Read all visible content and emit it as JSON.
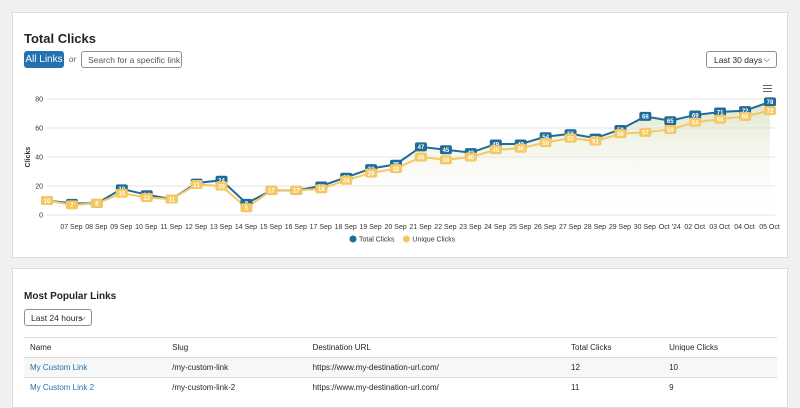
{
  "total_clicks": {
    "title": "Total Clicks",
    "all_links": "All Links",
    "or": "or",
    "search_placeholder": "Search for a specific link",
    "range": "Last 30 days",
    "chart_data": {
      "type": "line",
      "y_label": "Clicks",
      "categories": [
        null,
        "07 Sep",
        "08 Sep",
        "09 Sep",
        "10 Sep",
        "11 Sep",
        "12 Sep",
        "13 Sep",
        "14 Sep",
        "15 Sep",
        "16 Sep",
        "17 Sep",
        "18 Sep",
        "19 Sep",
        "20 Sep",
        "21 Sep",
        "22 Sep",
        "23 Sep",
        "24 Sep",
        "25 Sep",
        "26 Sep",
        "27 Sep",
        "28 Sep",
        "29 Sep",
        "30 Sep",
        "Oct '24",
        "02 Oct",
        "03 Oct",
        "04 Oct",
        "05 Oct"
      ],
      "series": [
        {
          "name": "Total Clicks",
          "color": "#1f6b99",
          "values": [
            10,
            8,
            8,
            18,
            14,
            11,
            22,
            24,
            8,
            17,
            17,
            20,
            26,
            32,
            35,
            47,
            45,
            43,
            49,
            49,
            54,
            56,
            53,
            59,
            68,
            65,
            69,
            71,
            72,
            78
          ]
        },
        {
          "name": "Unique Clicks",
          "color": "#f5c862",
          "values": [
            10,
            7,
            8,
            15,
            12,
            11,
            21,
            20,
            5,
            17,
            17,
            18,
            24,
            29,
            32,
            40,
            38,
            40,
            45,
            46,
            50,
            53,
            51,
            56,
            57,
            59,
            64,
            66,
            68,
            72
          ]
        }
      ],
      "ylim": [
        0,
        80
      ],
      "yticks": [
        0,
        20,
        40,
        60,
        80
      ],
      "grid": true,
      "legend": "bottom"
    }
  },
  "popular_links": {
    "title": "Most Popular Links",
    "range": "Last 24 hours",
    "table": {
      "header": [
        "Name",
        "Slug",
        "Destination URL",
        "Total Clicks",
        "Unique Clicks"
      ],
      "rows": [
        [
          "My Custom Link",
          "/my-custom-link",
          "https://www.my-destination-url.com/",
          12,
          10
        ],
        [
          "My Custom Link 2",
          "/my-custom-link-2",
          "https://www.my-destination-url.com/",
          11,
          9
        ]
      ]
    }
  }
}
